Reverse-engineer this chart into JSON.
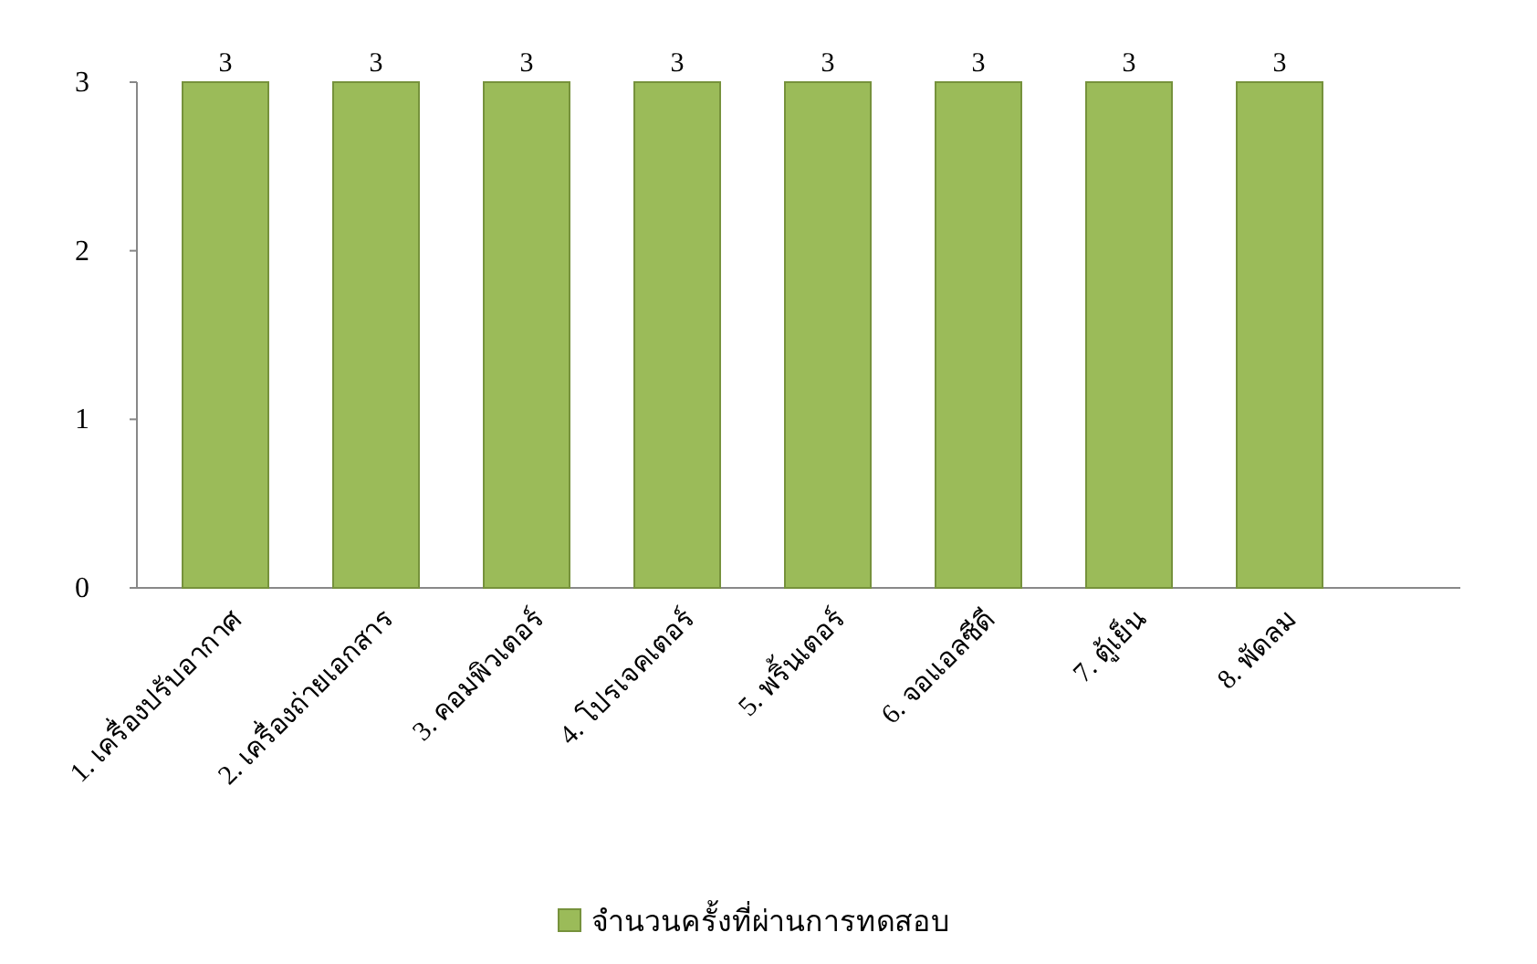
{
  "chart_data": {
    "type": "bar",
    "categories": [
      "1. เครื่องปรับอากาศ",
      "2. เครื่องถ่ายเอกสาร",
      "3. คอมพิวเตอร์",
      "4. โปรเจคเตอร์",
      "5. พริ้นเตอร์",
      "6. จอแอลซีดี",
      "7. ตู้เย็น",
      "8. พัดลม"
    ],
    "series": [
      {
        "name": "จำนวนครั้งที่ผ่านการทดสอบ",
        "color": "#9bbb59",
        "values": [
          3,
          3,
          3,
          3,
          3,
          3,
          3,
          3
        ]
      }
    ],
    "ylim": [
      0,
      3
    ],
    "yticks": [
      0,
      1,
      2,
      3
    ],
    "data_labels": true,
    "legend": "bottom",
    "grid": false
  }
}
